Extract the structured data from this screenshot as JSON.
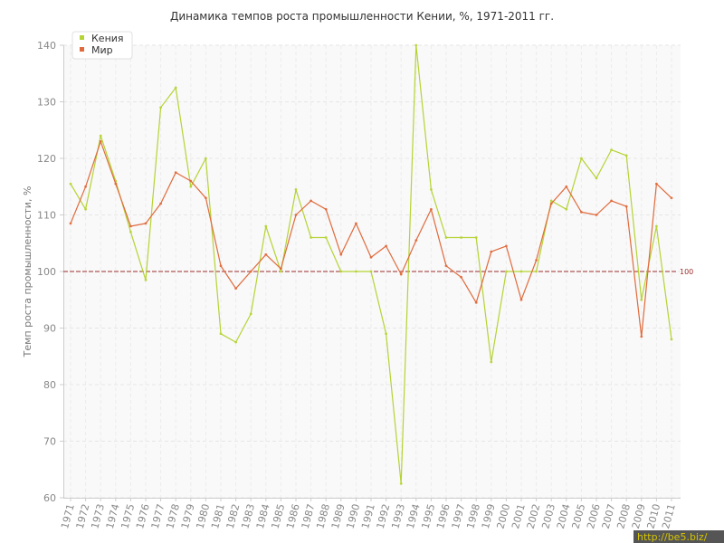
{
  "chart_data": {
    "type": "line",
    "title": "Динамика темпов роста промышленности Кении, %, 1971-2011 гг.",
    "xlabel": "",
    "ylabel": "Темп роста промышленности, %",
    "ylim": [
      60,
      140
    ],
    "yticks": [
      "60",
      "70",
      "80",
      "90",
      "100",
      "110",
      "120",
      "130",
      "140"
    ],
    "x": [
      "1971",
      "1972",
      "1973",
      "1974",
      "1975",
      "1976",
      "1977",
      "1978",
      "1979",
      "1980",
      "1981",
      "1982",
      "1983",
      "1984",
      "1985",
      "1986",
      "1987",
      "1988",
      "1989",
      "1990",
      "1991",
      "1992",
      "1993",
      "1994",
      "1995",
      "1996",
      "1997",
      "1998",
      "1999",
      "2000",
      "2001",
      "2002",
      "2003",
      "2004",
      "2005",
      "2006",
      "2007",
      "2008",
      "2009",
      "2010",
      "2011"
    ],
    "grid": true,
    "legend_position": "top-left",
    "series": [
      {
        "name": "Кения",
        "color": "#b5d334",
        "values": [
          115.5,
          111,
          124,
          116,
          107,
          98.5,
          129,
          132.5,
          115,
          120,
          89,
          87.5,
          92.5,
          108,
          100,
          114.5,
          106,
          106,
          100,
          100,
          100,
          89,
          62.5,
          140,
          114.5,
          106,
          106,
          106,
          84,
          100,
          100,
          100,
          112.5,
          111,
          120,
          116.5,
          121.5,
          120.5,
          95,
          108,
          88
        ]
      },
      {
        "name": "Мир",
        "color": "#e06a3c",
        "values": [
          108.5,
          115,
          123,
          115.5,
          108,
          108.5,
          112,
          117.5,
          116,
          113,
          101,
          97,
          100,
          103,
          100.5,
          110,
          112.5,
          111,
          103,
          108.5,
          102.5,
          104.5,
          99.5,
          105.5,
          111,
          101,
          99,
          94.5,
          103.5,
          104.5,
          95,
          102,
          112,
          115,
          110.5,
          110,
          112.5,
          111.5,
          88.5,
          115.5,
          113
        ]
      }
    ],
    "reference_line": {
      "value": 100,
      "label": "100",
      "color": "#9b2c2c"
    }
  },
  "watermark": "http://be5.biz/"
}
